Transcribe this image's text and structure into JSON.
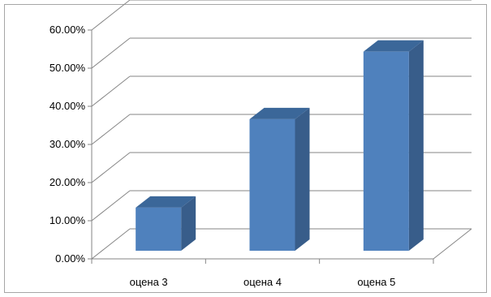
{
  "chart_data": {
    "type": "bar",
    "style": "3d-column",
    "categories": [
      "оцена 3",
      "оцена 4",
      "оцена 5"
    ],
    "values": [
      0.113,
      0.345,
      0.522
    ],
    "title": "",
    "xlabel": "",
    "ylabel": "",
    "ylim": [
      0,
      0.6
    ],
    "yticks": [
      0,
      0.1,
      0.2,
      0.3,
      0.4,
      0.5,
      0.6
    ],
    "ytick_labels": [
      "0.00%",
      "10.00%",
      "20.00%",
      "30.00%",
      "40.00%",
      "50.00%",
      "60.00%"
    ],
    "grid": true,
    "legend": "none",
    "colors": {
      "bar_front": "#4f81bd",
      "bar_side": "#385d8a",
      "bar_top": "#3b6799",
      "grid": "#868686",
      "frame": "#a6a6a6"
    }
  }
}
